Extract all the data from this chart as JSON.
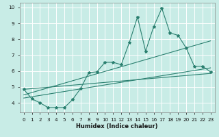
{
  "title": "",
  "xlabel": "Humidex (Indice chaleur)",
  "ylabel": "",
  "background_color": "#c8ece6",
  "grid_color": "#ffffff",
  "line_color": "#2a7f6f",
  "xlim": [
    -0.5,
    23.5
  ],
  "ylim": [
    3.4,
    10.3
  ],
  "xticks": [
    0,
    1,
    2,
    3,
    4,
    5,
    6,
    7,
    8,
    9,
    10,
    11,
    12,
    13,
    14,
    15,
    16,
    17,
    18,
    19,
    20,
    21,
    22,
    23
  ],
  "yticks": [
    4,
    5,
    6,
    7,
    8,
    9,
    10
  ],
  "line1_x": [
    0,
    1,
    2,
    3,
    4,
    5,
    6,
    7,
    8,
    9,
    10,
    11,
    12,
    13,
    14,
    15,
    16,
    17,
    18,
    19,
    20,
    21,
    22,
    23
  ],
  "line1_y": [
    4.85,
    4.25,
    4.0,
    3.7,
    3.7,
    3.7,
    4.2,
    4.9,
    5.9,
    5.95,
    6.55,
    6.55,
    6.4,
    7.8,
    9.4,
    7.25,
    8.8,
    9.95,
    8.4,
    8.25,
    7.45,
    6.3,
    6.3,
    5.95
  ],
  "line2_x": [
    0,
    23
  ],
  "line2_y": [
    4.5,
    7.9
  ],
  "line3_x": [
    0,
    23
  ],
  "line3_y": [
    4.3,
    6.2
  ],
  "line4_x": [
    0,
    23
  ],
  "line4_y": [
    4.85,
    5.85
  ]
}
